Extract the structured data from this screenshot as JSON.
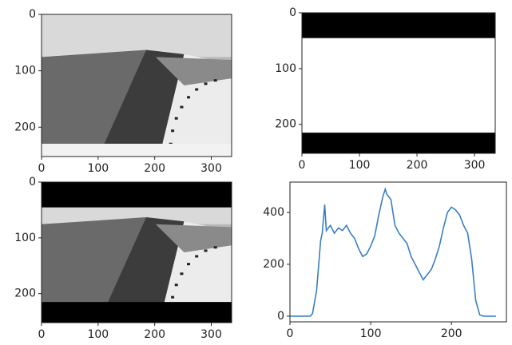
{
  "chart_data": [
    {
      "type": "image",
      "xlim": [
        0,
        336
      ],
      "ylim": [
        252,
        0
      ],
      "xticks": [
        0,
        100,
        200,
        300
      ],
      "yticks": [
        0,
        100,
        200
      ]
    },
    {
      "type": "image",
      "xlim": [
        0,
        336
      ],
      "ylim": [
        252,
        0
      ],
      "xticks": [
        0,
        100,
        200,
        300
      ],
      "yticks": [
        0,
        100,
        200
      ]
    },
    {
      "type": "image",
      "xlim": [
        0,
        336
      ],
      "ylim": [
        252,
        0
      ],
      "xticks": [
        0,
        100,
        200,
        300
      ],
      "yticks": [
        0,
        100,
        200
      ]
    },
    {
      "type": "line",
      "color": "#3a7fc1",
      "xlim": [
        0,
        268
      ],
      "ylim": [
        -22,
        517
      ],
      "xticks": [
        0,
        100,
        200
      ],
      "yticks": [
        0,
        200,
        400
      ],
      "x": [
        0,
        5,
        10,
        15,
        20,
        25,
        28,
        33,
        38,
        40,
        43,
        45,
        50,
        55,
        60,
        65,
        70,
        75,
        80,
        85,
        90,
        95,
        100,
        105,
        110,
        115,
        118,
        120,
        125,
        130,
        135,
        140,
        145,
        150,
        155,
        160,
        165,
        170,
        175,
        180,
        185,
        190,
        195,
        200,
        205,
        210,
        215,
        220,
        225,
        230,
        235,
        240,
        245,
        250,
        255
      ],
      "values": [
        0,
        0,
        0,
        0,
        0,
        0,
        10,
        100,
        290,
        320,
        430,
        330,
        350,
        320,
        340,
        330,
        350,
        320,
        300,
        260,
        230,
        240,
        270,
        310,
        390,
        460,
        490,
        470,
        450,
        350,
        320,
        300,
        280,
        230,
        200,
        170,
        140,
        160,
        180,
        220,
        270,
        340,
        400,
        420,
        410,
        390,
        350,
        320,
        220,
        60,
        5,
        0,
        0,
        0,
        0
      ]
    }
  ]
}
